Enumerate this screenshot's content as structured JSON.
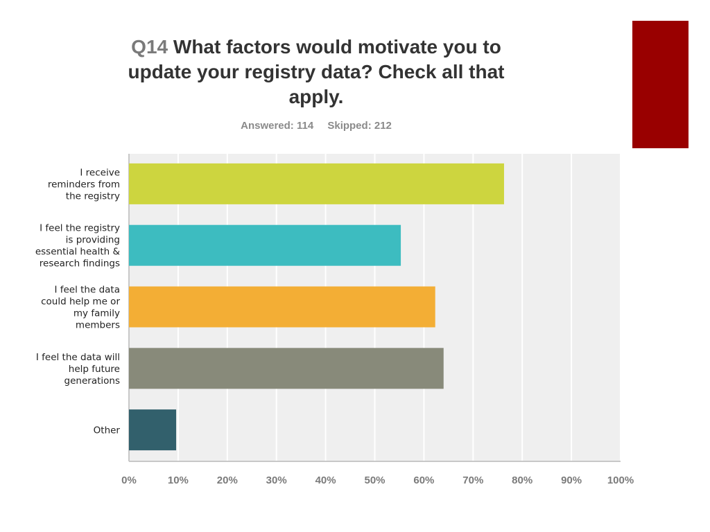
{
  "header": {
    "question_number": "Q14",
    "title": "What factors would motivate you to update your registry data? Check all that apply.",
    "answered": "Answered: 114",
    "skipped": "Skipped: 212"
  },
  "colors": {
    "accent_block": "#990000",
    "plot_background": "#efefef",
    "gridline": "#ffffff"
  },
  "chart_data": {
    "type": "bar",
    "orientation": "horizontal",
    "title": "Q14 What factors would motivate you to update your registry data? Check all that apply.",
    "categories": [
      [
        "I receive",
        "reminders from",
        "the registry"
      ],
      [
        "I feel the registry",
        "is providing",
        "essential health &",
        "research findings"
      ],
      [
        "I feel the data",
        "could help me or",
        "my family",
        "members"
      ],
      [
        "I feel the data will",
        "help future",
        "generations"
      ],
      [
        "Other"
      ]
    ],
    "values": [
      76.3,
      55.3,
      62.3,
      64.0,
      9.6
    ],
    "value_unit": "%",
    "bar_colors": [
      "#cdd53f",
      "#3dbcc0",
      "#f3ae35",
      "#888a7a",
      "#32606c"
    ],
    "xlim": [
      0,
      100
    ],
    "xticks": [
      "0%",
      "10%",
      "20%",
      "30%",
      "40%",
      "50%",
      "60%",
      "70%",
      "80%",
      "90%",
      "100%"
    ],
    "grid": true,
    "legend": "none"
  }
}
